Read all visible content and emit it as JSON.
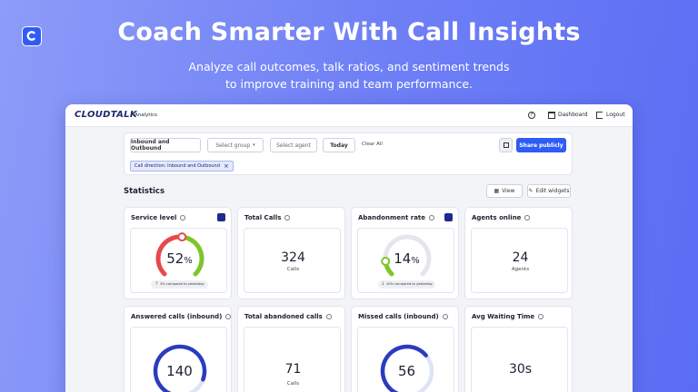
{
  "header": {
    "title": "Coach Smarter With Call Insights",
    "subtitle_lines": [
      "Analyze call outcomes, talk ratios, and sentiment trends",
      "to improve training and team performance."
    ]
  },
  "app": {
    "brand": "CLOUDTALK",
    "section": "Analytics",
    "nav": [
      "Dashboard",
      "Logout"
    ]
  },
  "filters": {
    "buttons": [
      "Inbound and Outbound",
      "Select group",
      "Select agent",
      "Today"
    ],
    "clear": "Clear All",
    "share": "Share publicly",
    "chip": "Call direction: Inbound and Outbound"
  },
  "statistics": {
    "title": "Statistics",
    "actions": [
      "View",
      "Edit widgets"
    ]
  },
  "widgets": [
    {
      "kind": "gauge",
      "title": "Service level",
      "value": 52,
      "unit": "%",
      "change": "3% compared to yesterday",
      "trend": "up",
      "color": "#e8474c",
      "rest_color": "#7cc62a"
    },
    {
      "kind": "number",
      "title": "Total Calls",
      "value": 324,
      "caption": "Calls"
    },
    {
      "kind": "gauge",
      "title": "Abandonment rate",
      "value": 14,
      "unit": "%",
      "change": "10% compared to yesterday",
      "trend": "down",
      "color": "#7cc62a",
      "rest_color": "#e4e6ec"
    },
    {
      "kind": "number",
      "title": "Agents online",
      "value": 24,
      "caption": "Agents"
    },
    {
      "kind": "ring",
      "title": "Answered calls (inbound)",
      "value": 140
    },
    {
      "kind": "number",
      "title": "Total abandoned calls",
      "value": 71,
      "caption": "Calls"
    },
    {
      "kind": "ring",
      "title": "Missed calls (inbound)",
      "value": 56
    },
    {
      "kind": "number",
      "title": "Avg Waiting Time",
      "value": "30s"
    }
  ]
}
